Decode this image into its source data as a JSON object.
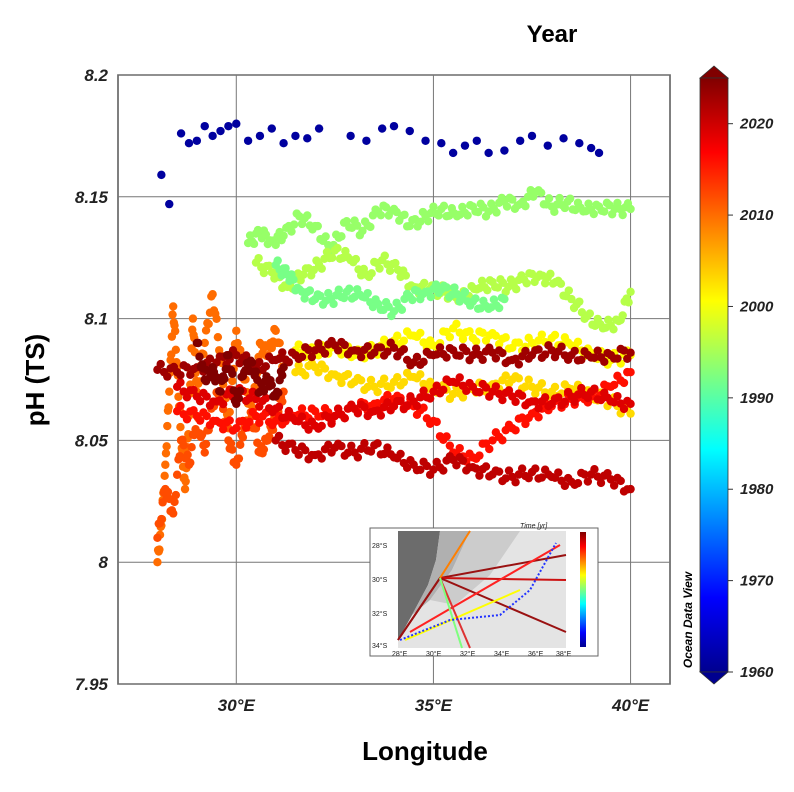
{
  "chart_data": {
    "type": "scatter",
    "title": "",
    "xlabel": "Longitude",
    "ylabel": "pH (TS)",
    "xlim": [
      27.0,
      41.0
    ],
    "ylim": [
      7.95,
      8.2
    ],
    "x_ticks": [
      30,
      35,
      40
    ],
    "x_tick_labels": [
      "30°E",
      "35°E",
      "40°E"
    ],
    "y_ticks": [
      7.95,
      8.0,
      8.05,
      8.1,
      8.15,
      8.2
    ],
    "y_tick_labels": [
      "7.95",
      "8",
      "8.05",
      "8.1",
      "8.15",
      "8.2"
    ],
    "grid": true,
    "colorbar": {
      "title": "Year",
      "range": [
        1960,
        2025
      ],
      "ticks": [
        1960,
        1970,
        1980,
        1990,
        2000,
        2010,
        2020
      ],
      "tick_labels": [
        "1960",
        "1970",
        "1980",
        "1990",
        "2000",
        "2010",
        "2020"
      ],
      "colormap": "jet"
    },
    "watermark": "Ocean Data View",
    "series": [
      {
        "year": 1962,
        "x": [
          28.1,
          28.3,
          28.6,
          28.8,
          29.0,
          29.2,
          29.4,
          29.6,
          29.8,
          30.0,
          30.3,
          30.6,
          30.9,
          31.2,
          31.5,
          31.8,
          32.1,
          32.9,
          33.3,
          33.7,
          34.0,
          34.4,
          34.8,
          35.2,
          35.5,
          35.8,
          36.1,
          36.4,
          36.8,
          37.2,
          37.5,
          37.9,
          38.3,
          38.7,
          39.0,
          39.2
        ],
        "y": [
          8.159,
          8.147,
          8.176,
          8.172,
          8.173,
          8.179,
          8.175,
          8.177,
          8.179,
          8.18,
          8.173,
          8.175,
          8.178,
          8.172,
          8.175,
          8.174,
          8.178,
          8.175,
          8.173,
          8.178,
          8.179,
          8.177,
          8.173,
          8.172,
          8.168,
          8.171,
          8.173,
          8.168,
          8.169,
          8.173,
          8.175,
          8.171,
          8.174,
          8.172,
          8.17,
          8.168
        ]
      },
      {
        "year": 1994,
        "x": [
          30.3,
          30.6,
          30.9,
          31.2,
          31.6,
          32.0,
          32.4,
          32.8,
          33.2,
          33.6,
          34.0,
          34.4,
          34.8,
          35.2,
          35.6,
          36.0,
          36.4,
          36.8,
          37.2,
          37.6,
          38.0,
          38.4,
          38.8,
          39.2,
          39.6,
          40.0
        ],
        "y": [
          8.131,
          8.135,
          8.132,
          8.134,
          8.142,
          8.138,
          8.128,
          8.14,
          8.136,
          8.144,
          8.145,
          8.138,
          8.142,
          8.145,
          8.142,
          8.146,
          8.144,
          8.148,
          8.147,
          8.152,
          8.146,
          8.148,
          8.144,
          8.146,
          8.145,
          8.145
        ]
      },
      {
        "year": 1996,
        "x": [
          30.5,
          30.9,
          31.3,
          31.7,
          32.1,
          32.5,
          32.9,
          33.3,
          33.7,
          34.1,
          34.5,
          34.9,
          35.3,
          35.7,
          36.1,
          36.5,
          36.9,
          37.3,
          37.7,
          38.1,
          38.5,
          38.9,
          39.3,
          39.7,
          40.0
        ],
        "y": [
          8.123,
          8.119,
          8.113,
          8.118,
          8.122,
          8.128,
          8.124,
          8.118,
          8.124,
          8.12,
          8.113,
          8.112,
          8.111,
          8.109,
          8.112,
          8.115,
          8.113,
          8.116,
          8.118,
          8.115,
          8.108,
          8.101,
          8.096,
          8.099,
          8.111
        ]
      },
      {
        "year": 1992,
        "x": [
          31.0,
          31.3,
          31.6,
          32.0,
          32.4,
          32.8,
          33.2,
          33.6,
          34.0,
          34.4,
          34.8,
          35.2,
          35.6,
          36.0,
          36.4,
          36.8
        ],
        "y": [
          8.122,
          8.118,
          8.112,
          8.108,
          8.108,
          8.111,
          8.109,
          8.106,
          8.103,
          8.109,
          8.111,
          8.112,
          8.11,
          8.107,
          8.104,
          8.108
        ]
      },
      {
        "year": 2001,
        "x": [
          31.5,
          32.0,
          32.5,
          33.0,
          33.5,
          34.0,
          34.5,
          35.0,
          35.5,
          36.0,
          36.5,
          37.0,
          37.5,
          38.0,
          38.5,
          39.0,
          39.5,
          40.0
        ],
        "y": [
          8.087,
          8.086,
          8.089,
          8.085,
          8.087,
          8.091,
          8.093,
          8.089,
          8.096,
          8.092,
          8.094,
          8.088,
          8.09,
          8.092,
          8.089,
          8.086,
          8.083,
          8.085
        ]
      },
      {
        "year": 2003,
        "x": [
          31.5,
          32.0,
          32.5,
          33.0,
          33.5,
          34.0,
          34.5,
          35.0,
          35.5,
          36.0,
          36.5,
          37.0,
          37.5,
          38.0,
          38.5,
          39.0,
          39.5,
          40.0
        ],
        "y": [
          8.078,
          8.08,
          8.077,
          8.074,
          8.072,
          8.074,
          8.076,
          8.072,
          8.069,
          8.071,
          8.073,
          8.075,
          8.072,
          8.07,
          8.071,
          8.069,
          8.066,
          8.061
        ]
      },
      {
        "year": 2010,
        "x": [
          28.0,
          28.1,
          28.2,
          28.3,
          28.4,
          28.5,
          28.6,
          28.7,
          28.8,
          28.9,
          29.0,
          29.2,
          29.4,
          29.6,
          29.8,
          30.0,
          30.2,
          30.4,
          30.6,
          30.8,
          31.0,
          31.2
        ],
        "y": [
          8.0,
          8.015,
          8.04,
          8.07,
          8.105,
          8.08,
          8.05,
          8.03,
          8.06,
          8.1,
          8.07,
          8.09,
          8.11,
          8.085,
          8.055,
          8.095,
          8.075,
          8.06,
          8.09,
          8.085,
          8.095,
          8.08
        ]
      },
      {
        "year": 2012,
        "x": [
          28.0,
          28.2,
          28.4,
          28.6,
          28.8,
          29.0,
          29.2,
          29.4,
          29.6,
          29.8,
          30.0,
          30.2,
          30.4,
          30.6,
          30.8,
          31.0,
          31.2
        ],
        "y": [
          8.01,
          8.03,
          8.02,
          8.05,
          8.04,
          8.06,
          8.045,
          8.065,
          8.07,
          8.05,
          8.04,
          8.055,
          8.06,
          8.045,
          8.05,
          8.06,
          8.07
        ]
      },
      {
        "year": 2016,
        "x": [
          28.5,
          29.0,
          29.5,
          30.0,
          30.5,
          31.0,
          31.5,
          32.0,
          32.5,
          33.0,
          33.5,
          34.0,
          34.5,
          35.0,
          35.5,
          36.0,
          36.5,
          37.0,
          37.5,
          38.0,
          38.5,
          39.0,
          39.5,
          40.0
        ],
        "y": [
          8.062,
          8.06,
          8.058,
          8.055,
          8.06,
          8.058,
          8.06,
          8.062,
          8.06,
          8.063,
          8.065,
          8.067,
          8.064,
          8.058,
          8.045,
          8.043,
          8.05,
          8.055,
          8.061,
          8.064,
          8.067,
          8.068,
          8.072,
          8.078
        ]
      },
      {
        "year": 2019,
        "x": [
          28.5,
          29.0,
          29.5,
          30.0,
          30.5,
          31.0,
          31.5,
          32.0,
          32.5,
          33.0,
          33.5,
          34.0,
          34.5,
          35.0,
          35.5,
          36.0,
          36.5,
          37.0,
          37.5,
          38.0,
          38.5,
          39.0,
          39.5,
          40.0
        ],
        "y": [
          8.072,
          8.068,
          8.066,
          8.07,
          8.067,
          8.063,
          8.058,
          8.056,
          8.06,
          8.063,
          8.062,
          8.064,
          8.066,
          8.07,
          8.074,
          8.072,
          8.07,
          8.068,
          8.066,
          8.065,
          8.068,
          8.07,
          8.066,
          8.065
        ]
      },
      {
        "year": 2021,
        "x": [
          31.0,
          31.5,
          32.0,
          32.5,
          33.0,
          33.5,
          34.0,
          34.5,
          35.0,
          35.5,
          36.0,
          36.5,
          37.0,
          37.5,
          38.0,
          38.5,
          39.0,
          39.5,
          40.0
        ],
        "y": [
          8.05,
          8.046,
          8.044,
          8.047,
          8.045,
          8.048,
          8.043,
          8.04,
          8.038,
          8.042,
          8.039,
          8.036,
          8.035,
          8.037,
          8.035,
          8.033,
          8.036,
          8.034,
          8.03
        ]
      },
      {
        "year": 2023,
        "x": [
          28.0,
          28.5,
          29.0,
          29.5,
          30.0,
          30.5,
          31.0,
          31.5,
          32.0,
          32.5,
          33.0,
          33.5,
          34.0,
          34.5,
          35.0,
          35.5,
          36.0,
          36.5,
          37.0,
          37.5,
          38.0,
          38.5,
          39.0,
          39.5,
          40.0
        ],
        "y": [
          8.079,
          8.078,
          8.08,
          8.082,
          8.085,
          8.08,
          8.083,
          8.085,
          8.087,
          8.089,
          8.087,
          8.086,
          8.088,
          8.082,
          8.085,
          8.087,
          8.085,
          8.086,
          8.083,
          8.085,
          8.087,
          8.085,
          8.084,
          8.085,
          8.086
        ]
      },
      {
        "year": 2025,
        "x": [
          29.0,
          29.2,
          29.4,
          29.6,
          29.8,
          30.0,
          30.2,
          30.4,
          30.6,
          30.8,
          31.0,
          31.2
        ],
        "y": [
          8.09,
          8.075,
          8.08,
          8.07,
          8.085,
          8.065,
          8.078,
          8.082,
          8.07,
          8.075,
          8.068,
          8.08
        ]
      }
    ]
  }
}
